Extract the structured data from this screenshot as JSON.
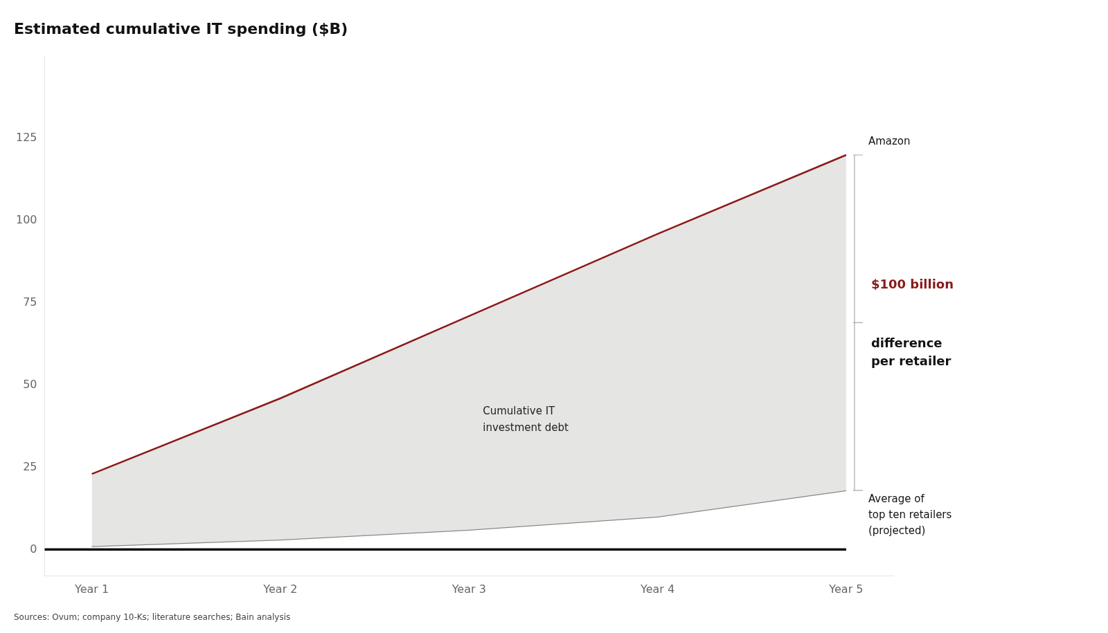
{
  "chart_data": {
    "type": "line",
    "title": "Estimated cumulative IT spending ($B)",
    "x": [
      1,
      2,
      3,
      4,
      5
    ],
    "xlim": [
      0.75,
      5.25
    ],
    "xticks": [
      {
        "value": 1,
        "label": "Year 1"
      },
      {
        "value": 2,
        "label": "Year 2"
      },
      {
        "value": 3,
        "label": "Year 3"
      },
      {
        "value": 4,
        "label": "Year 4"
      },
      {
        "value": 5,
        "label": "Year 5"
      }
    ],
    "ylim": [
      -8,
      150
    ],
    "yticks": [
      0,
      25,
      50,
      75,
      100,
      125
    ],
    "series": [
      {
        "name": "Amazon",
        "color": "#8B1A1A",
        "values": [
          23,
          46,
          71,
          96,
          120
        ]
      },
      {
        "name": "Average of\ntop ten retailers\n(projected)",
        "color": "#888888",
        "values": [
          1,
          3,
          6,
          10,
          18
        ]
      }
    ],
    "fill_between": {
      "color": "#E5E5E3"
    },
    "baseline": {
      "y": 0,
      "x_end": 5,
      "color": "#111111"
    },
    "annotations": [
      {
        "text": "Cumulative IT\ninvestment debt"
      },
      {
        "text": "$100 billion",
        "color": "#8B1A1A"
      },
      {
        "text": "difference\nper retailer"
      }
    ],
    "source": "Sources: Ovum; company 10-Ks; literature searches; Bain analysis",
    "marker": "none",
    "grid": false,
    "legend": false
  }
}
